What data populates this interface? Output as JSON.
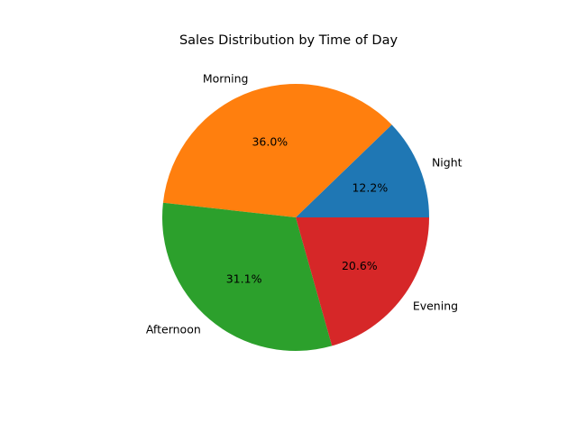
{
  "chart_data": {
    "type": "pie",
    "title": "Sales Distribution by Time of Day",
    "labels": [
      "Night",
      "Morning",
      "Afternoon",
      "Evening"
    ],
    "values": [
      12.2,
      36.0,
      31.1,
      20.6
    ],
    "percent_labels": [
      "12.2%",
      "36.0%",
      "31.1%",
      "20.6%"
    ],
    "colors": [
      "#1f77b4",
      "#ff7f0e",
      "#2ca02c",
      "#d62728"
    ],
    "start_angle_deg": 0,
    "direction": "counterclockwise",
    "legend": "none"
  }
}
